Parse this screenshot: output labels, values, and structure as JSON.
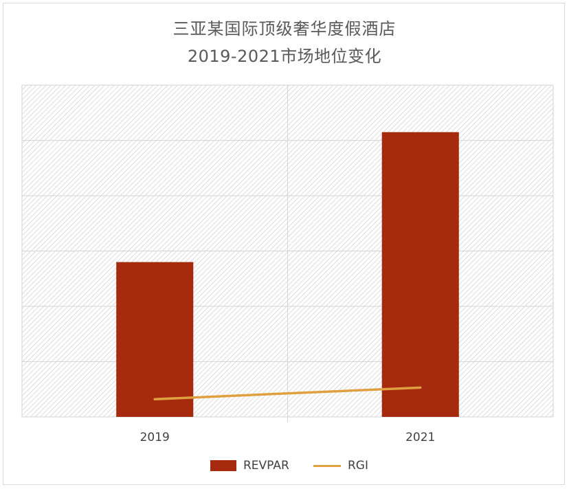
{
  "title_line1": "三亚某国际顶级奢华度假酒店",
  "title_line2": "2019-2021市场地位变化",
  "colors": {
    "bar": "#A52A0E",
    "line": "#E0A040",
    "grid": "#d9d9d9",
    "hatch": "#c8c8c8"
  },
  "chart_data": {
    "type": "bar",
    "title": "三亚某国际顶级奢华度假酒店 2019-2021市场地位变化",
    "categories": [
      "2019",
      "2021"
    ],
    "series": [
      {
        "name": "REVPAR",
        "kind": "bar",
        "values": [
          2.8,
          5.15
        ]
      },
      {
        "name": "RGI",
        "kind": "line",
        "values": [
          0.32,
          0.53
        ]
      }
    ],
    "ylim": [
      0,
      6
    ],
    "y_ticks_shown": false,
    "grid": true,
    "legend": "bottom"
  }
}
